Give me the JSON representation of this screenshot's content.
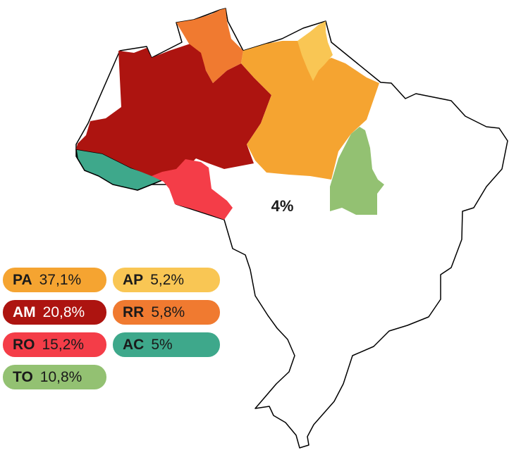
{
  "map": {
    "center_value": "4%",
    "regions": [
      {
        "code": "PA",
        "value": "37,1%",
        "color": "#f5a431"
      },
      {
        "code": "AP",
        "value": "5,2%",
        "color": "#f9c654"
      },
      {
        "code": "AM",
        "value": "20,8%",
        "color": "#ad1410"
      },
      {
        "code": "RR",
        "value": "5,8%",
        "color": "#f07a30"
      },
      {
        "code": "RO",
        "value": "15,2%",
        "color": "#f43d48"
      },
      {
        "code": "AC",
        "value": "5%",
        "color": "#3ea88b"
      },
      {
        "code": "TO",
        "value": "10,8%",
        "color": "#93c172"
      }
    ]
  }
}
